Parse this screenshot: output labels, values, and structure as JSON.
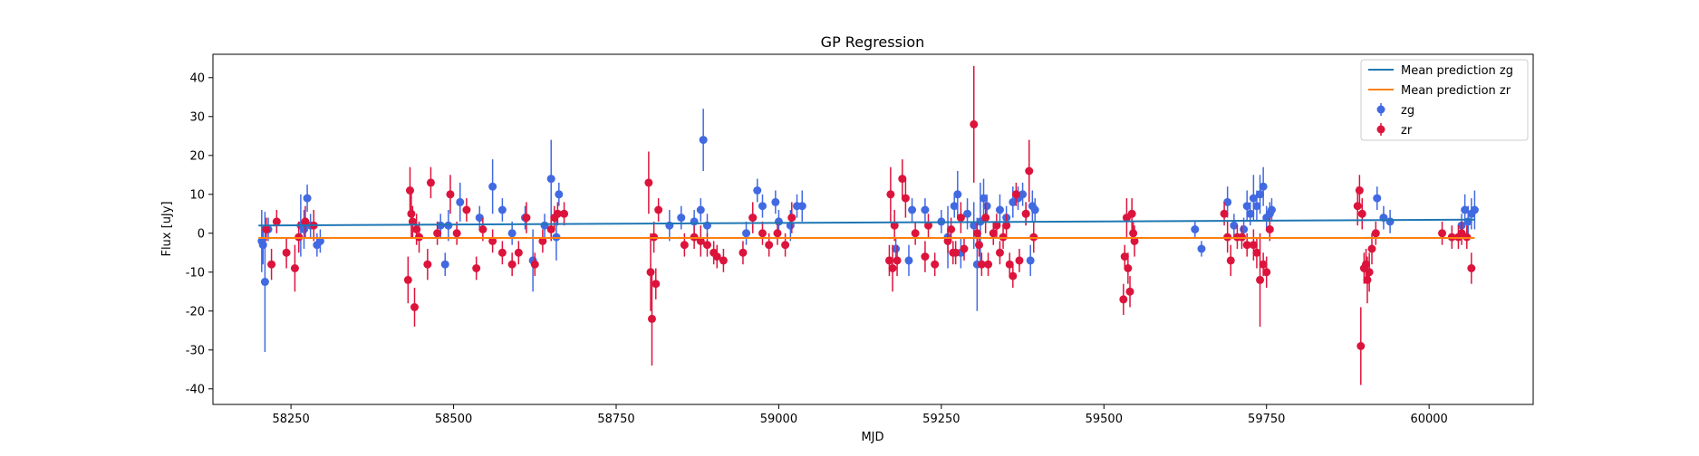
{
  "chart_data": {
    "type": "scatter",
    "title": "GP Regression",
    "xlabel": "MJD",
    "ylabel": "Flux [uJy]",
    "xlim": [
      58130,
      60160
    ],
    "ylim": [
      -44,
      46
    ],
    "xticks": [
      58250,
      58500,
      58750,
      59000,
      59250,
      59500,
      59750,
      60000
    ],
    "yticks": [
      -40,
      -30,
      -20,
      -10,
      0,
      10,
      20,
      30,
      40
    ],
    "grid": false,
    "legend_position": "top-right",
    "lines": [
      {
        "name": "Mean prediction zg",
        "color": "#1f77b4",
        "x": [
          58200,
          60070
        ],
        "y": [
          2.0,
          3.5
        ]
      },
      {
        "name": "Mean prediction zr",
        "color": "#ff7f0e",
        "x": [
          58200,
          60070
        ],
        "y": [
          -1.2,
          -1.2
        ]
      }
    ],
    "series": [
      {
        "name": "zg",
        "color": "#4169e1",
        "points": [
          [
            58205,
            -2,
            8
          ],
          [
            58207,
            -3,
            5
          ],
          [
            58210,
            -12.5,
            18
          ],
          [
            58215,
            1,
            3
          ],
          [
            58265,
            2,
            8
          ],
          [
            58270,
            1,
            5
          ],
          [
            58275,
            9,
            3.5
          ],
          [
            58280,
            2,
            3
          ],
          [
            58290,
            -3,
            3
          ],
          [
            58295,
            -2,
            3
          ],
          [
            58480,
            2,
            3
          ],
          [
            58487,
            -8,
            3
          ],
          [
            58492,
            2,
            4
          ],
          [
            58510,
            8,
            5
          ],
          [
            58540,
            4,
            3
          ],
          [
            58560,
            12,
            7
          ],
          [
            58575,
            6,
            3
          ],
          [
            58590,
            0,
            3
          ],
          [
            58610,
            4,
            3
          ],
          [
            58622,
            -7,
            8
          ],
          [
            58640,
            2,
            3
          ],
          [
            58650,
            14,
            10
          ],
          [
            58658,
            -1,
            6
          ],
          [
            58662,
            10,
            3
          ],
          [
            58832,
            2,
            4
          ],
          [
            58850,
            4,
            3
          ],
          [
            58870,
            3,
            3
          ],
          [
            58880,
            6,
            3
          ],
          [
            58884,
            24,
            8
          ],
          [
            58890,
            2,
            3
          ],
          [
            58950,
            0,
            3
          ],
          [
            58960,
            4,
            3
          ],
          [
            58967,
            11,
            3
          ],
          [
            58975,
            7,
            3
          ],
          [
            58995,
            8,
            3
          ],
          [
            59000,
            3,
            3
          ],
          [
            59018,
            2,
            4
          ],
          [
            59028,
            7,
            3
          ],
          [
            59036,
            7,
            4
          ],
          [
            59180,
            -4,
            3
          ],
          [
            59200,
            -7,
            4
          ],
          [
            59205,
            6,
            3
          ],
          [
            59225,
            6,
            3
          ],
          [
            59250,
            3,
            3
          ],
          [
            59260,
            -1,
            8
          ],
          [
            59270,
            7,
            3
          ],
          [
            59275,
            10,
            6
          ],
          [
            59280,
            -5,
            4
          ],
          [
            59290,
            5,
            4
          ],
          [
            59300,
            2,
            6
          ],
          [
            59305,
            -8,
            12
          ],
          [
            59310,
            3,
            10
          ],
          [
            59315,
            9,
            5
          ],
          [
            59320,
            7,
            3
          ],
          [
            59330,
            0,
            3
          ],
          [
            59340,
            6,
            4
          ],
          [
            59350,
            4,
            3
          ],
          [
            59360,
            8,
            4
          ],
          [
            59368,
            9,
            3
          ],
          [
            59375,
            10,
            3
          ],
          [
            59380,
            5,
            3
          ],
          [
            59387,
            -7,
            4
          ],
          [
            59390,
            7,
            4
          ],
          [
            59394,
            6,
            3
          ],
          [
            59640,
            1,
            2
          ],
          [
            59650,
            -4,
            2
          ],
          [
            59690,
            8,
            4
          ],
          [
            59700,
            2,
            3
          ],
          [
            59715,
            1,
            3
          ],
          [
            59720,
            7,
            4
          ],
          [
            59725,
            5,
            3
          ],
          [
            59730,
            9,
            6
          ],
          [
            59735,
            7,
            4
          ],
          [
            59740,
            10,
            5
          ],
          [
            59745,
            12,
            5
          ],
          [
            59750,
            4,
            3
          ],
          [
            59755,
            5,
            3
          ],
          [
            59758,
            6,
            3
          ],
          [
            59920,
            9,
            3
          ],
          [
            59930,
            4,
            3
          ],
          [
            59940,
            3,
            3
          ],
          [
            60050,
            2,
            3
          ],
          [
            60055,
            6,
            4
          ],
          [
            60060,
            3,
            4
          ],
          [
            60065,
            5,
            4
          ],
          [
            60070,
            6,
            5
          ]
        ]
      },
      {
        "name": "zr",
        "color": "#dc143c",
        "points": [
          [
            58212,
            1,
            3
          ],
          [
            58220,
            -8,
            4
          ],
          [
            58228,
            3,
            3
          ],
          [
            58243,
            -5,
            4
          ],
          [
            58256,
            -9,
            6
          ],
          [
            58262,
            -1,
            4
          ],
          [
            58272,
            3,
            4
          ],
          [
            58285,
            2,
            4
          ],
          [
            58430,
            -12,
            6
          ],
          [
            58433,
            11,
            6
          ],
          [
            58435,
            5,
            6
          ],
          [
            58437,
            3,
            4
          ],
          [
            58440,
            -19,
            5
          ],
          [
            58443,
            1,
            4
          ],
          [
            58447,
            -1,
            4
          ],
          [
            58460,
            -8,
            4
          ],
          [
            58465,
            13,
            4
          ],
          [
            58475,
            0,
            3
          ],
          [
            58495,
            10,
            5
          ],
          [
            58505,
            0,
            3
          ],
          [
            58520,
            6,
            3
          ],
          [
            58535,
            -9,
            3
          ],
          [
            58545,
            1,
            3
          ],
          [
            58560,
            -2,
            3
          ],
          [
            58575,
            -5,
            3
          ],
          [
            58590,
            -8,
            3
          ],
          [
            58600,
            -5,
            3
          ],
          [
            58612,
            4,
            4
          ],
          [
            58625,
            -8,
            3
          ],
          [
            58637,
            -2,
            3
          ],
          [
            58650,
            1,
            3
          ],
          [
            58655,
            4,
            3
          ],
          [
            58660,
            5,
            3
          ],
          [
            58670,
            5,
            3
          ],
          [
            58800,
            13,
            8
          ],
          [
            58803,
            -10,
            10
          ],
          [
            58805,
            -22,
            12
          ],
          [
            58808,
            -1,
            4
          ],
          [
            58811,
            -13,
            4
          ],
          [
            58815,
            6,
            3
          ],
          [
            58855,
            -3,
            3
          ],
          [
            58870,
            -1,
            3
          ],
          [
            58880,
            -2,
            4
          ],
          [
            58890,
            -3,
            3
          ],
          [
            58900,
            -5,
            3
          ],
          [
            58905,
            -6,
            3
          ],
          [
            58915,
            -7,
            3
          ],
          [
            58945,
            -5,
            3
          ],
          [
            58960,
            4,
            4
          ],
          [
            58975,
            0,
            3
          ],
          [
            58985,
            -3,
            3
          ],
          [
            58998,
            0,
            3
          ],
          [
            59010,
            -3,
            3
          ],
          [
            59020,
            4,
            4
          ],
          [
            59170,
            -7,
            4
          ],
          [
            59172,
            10,
            7
          ],
          [
            59175,
            -9,
            6
          ],
          [
            59178,
            2,
            4
          ],
          [
            59182,
            -7,
            4
          ],
          [
            59190,
            14,
            5
          ],
          [
            59195,
            9,
            5
          ],
          [
            59210,
            0,
            3
          ],
          [
            59225,
            -6,
            4
          ],
          [
            59230,
            2,
            3
          ],
          [
            59240,
            -8,
            3
          ],
          [
            59260,
            -2,
            3
          ],
          [
            59265,
            1,
            3
          ],
          [
            59268,
            -5,
            3
          ],
          [
            59272,
            -5,
            3
          ],
          [
            59280,
            4,
            4
          ],
          [
            59285,
            -4,
            3
          ],
          [
            59300,
            28,
            15
          ],
          [
            59305,
            0,
            3
          ],
          [
            59308,
            -3,
            3
          ],
          [
            59312,
            -8,
            3
          ],
          [
            59318,
            4,
            4
          ],
          [
            59322,
            -8,
            3
          ],
          [
            59330,
            0,
            3
          ],
          [
            59335,
            2,
            3
          ],
          [
            59340,
            -5,
            3
          ],
          [
            59345,
            -1,
            3
          ],
          [
            59350,
            2,
            3
          ],
          [
            59355,
            -8,
            3
          ],
          [
            59360,
            -11,
            3
          ],
          [
            59365,
            10,
            3
          ],
          [
            59370,
            -7,
            3
          ],
          [
            59380,
            5,
            3
          ],
          [
            59385,
            16,
            8
          ],
          [
            59392,
            -1,
            4
          ],
          [
            59530,
            -17,
            4
          ],
          [
            59532,
            -6,
            3
          ],
          [
            59535,
            4,
            5
          ],
          [
            59537,
            -9,
            4
          ],
          [
            59540,
            -15,
            4
          ],
          [
            59543,
            5,
            4
          ],
          [
            59545,
            0,
            3
          ],
          [
            59547,
            -2,
            4
          ],
          [
            59685,
            5,
            3
          ],
          [
            59690,
            -1,
            4
          ],
          [
            59695,
            -7,
            4
          ],
          [
            59705,
            -1,
            3
          ],
          [
            59712,
            -1,
            3
          ],
          [
            59720,
            -3,
            3
          ],
          [
            59730,
            -3,
            4
          ],
          [
            59735,
            -5,
            4
          ],
          [
            59740,
            -12,
            12
          ],
          [
            59745,
            -8,
            3
          ],
          [
            59750,
            -10,
            4
          ],
          [
            59755,
            1,
            3
          ],
          [
            59890,
            7,
            5
          ],
          [
            59893,
            11,
            4
          ],
          [
            59895,
            -29,
            10
          ],
          [
            59897,
            5,
            4
          ],
          [
            59900,
            -9,
            4
          ],
          [
            59903,
            -8,
            4
          ],
          [
            59905,
            -12,
            6
          ],
          [
            59908,
            -10,
            5
          ],
          [
            59912,
            -4,
            4
          ],
          [
            59918,
            0,
            3
          ],
          [
            60020,
            0,
            3
          ],
          [
            60035,
            -1,
            3
          ],
          [
            60045,
            -1,
            3
          ],
          [
            60050,
            0,
            3
          ],
          [
            60058,
            -1,
            3
          ],
          [
            60065,
            -9,
            4
          ]
        ]
      }
    ]
  }
}
